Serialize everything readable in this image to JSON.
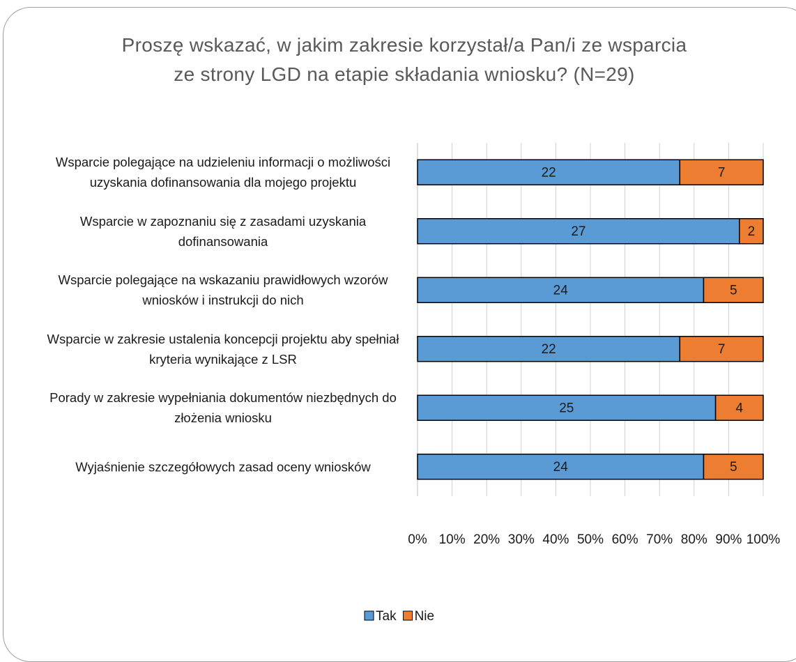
{
  "chart_data": {
    "type": "bar",
    "orientation": "horizontal",
    "stacked": true,
    "percent_stacked": true,
    "title": "Proszę wskazać, w jakim zakresie korzystał/a Pan/i ze wsparcia ze strony LGD na etapie składania wniosku? (N=29)",
    "categories": [
      "Wsparcie polegające na udzieleniu informacji o możliwości uzyskania dofinansowania dla mojego projektu",
      "Wsparcie w zapoznaniu się z zasadami uzyskania dofinansowania",
      "Wsparcie polegające na wskazaniu prawidłowych wzorów wniosków i instrukcji do nich",
      "Wsparcie w zakresie ustalenia koncepcji projektu aby spełniał kryteria wynikające z LSR",
      "Porady w zakresie wypełniania dokumentów niezbędnych do złożenia wniosku",
      "Wyjaśnienie szczegółowych zasad oceny wniosków"
    ],
    "series": [
      {
        "name": "Tak",
        "color": "#5b9bd5",
        "values": [
          22,
          27,
          24,
          22,
          25,
          24
        ]
      },
      {
        "name": "Nie",
        "color": "#ed7d31",
        "values": [
          7,
          2,
          5,
          7,
          4,
          5
        ]
      }
    ],
    "xlim": [
      0,
      100
    ],
    "xticks": [
      {
        "value": 0,
        "label": "0%"
      },
      {
        "value": 10,
        "label": "10%"
      },
      {
        "value": 20,
        "label": "20%"
      },
      {
        "value": 30,
        "label": "30%"
      },
      {
        "value": 40,
        "label": "40%"
      },
      {
        "value": 50,
        "label": "50%"
      },
      {
        "value": 60,
        "label": "60%"
      },
      {
        "value": 70,
        "label": "70%"
      },
      {
        "value": 80,
        "label": "80%"
      },
      {
        "value": 90,
        "label": "90%"
      },
      {
        "value": 100,
        "label": "100%"
      }
    ],
    "grid": true,
    "legend": "bottom"
  }
}
